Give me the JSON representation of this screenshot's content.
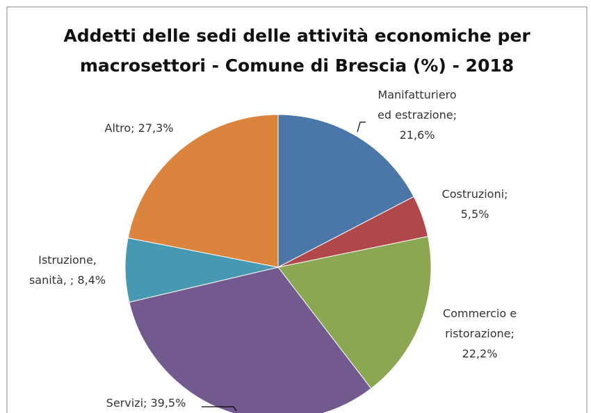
{
  "chart_data": {
    "type": "pie",
    "title": [
      "Addetti delle sedi delle attività economiche per",
      "macrosettori  - Comune di Brescia (%) - 2018"
    ],
    "values": [
      21.6,
      5.5,
      22.2,
      39.5,
      8.4,
      27.3
    ],
    "value_labels": [
      "Manifatturiero ed estrazione; 21,6%",
      "Costruzioni; 5,5%",
      "Commercio e ristorazione; 22,2%",
      "Servizi; 39,5%",
      "Istruzione, sanità, ; 8,4%",
      "Altro; 27,3%"
    ],
    "colors": [
      "#4a76a8",
      "#b0474a",
      "#8ba752",
      "#725a8f",
      "#4699b1",
      "#db843e"
    ]
  }
}
